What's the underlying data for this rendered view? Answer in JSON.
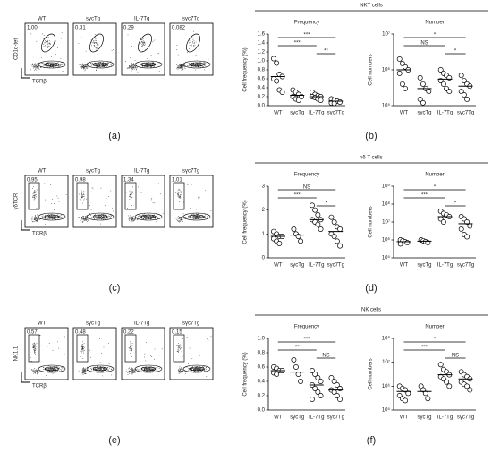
{
  "figure": {
    "panel_labels": [
      "(a)",
      "(b)",
      "(c)",
      "(d)",
      "(e)",
      "(f)"
    ]
  },
  "sections": [
    {
      "title": "NKT cells"
    },
    {
      "title": "γδ T cells"
    },
    {
      "title": "NK cells"
    }
  ],
  "flow_rows": [
    {
      "y_label": "CD1d-tet",
      "x_label": "TCRβ",
      "panels": [
        {
          "name": "WT",
          "pct": "1.00"
        },
        {
          "name": "sγcTg",
          "pct": "0.31"
        },
        {
          "name": "IL-7Tg",
          "pct": "0.29"
        },
        {
          "name": "sγc7Tg",
          "pct": "0.082"
        }
      ]
    },
    {
      "y_label": "γδTCR",
      "x_label": "TCRβ",
      "panels": [
        {
          "name": "WT",
          "pct": "0.95"
        },
        {
          "name": "sγcTg",
          "pct": "0.98"
        },
        {
          "name": "IL-7Tg",
          "pct": "1.34"
        },
        {
          "name": "sγc7Tg",
          "pct": "1.01"
        }
      ]
    },
    {
      "y_label": "NK1.1",
      "x_label": "TCRβ",
      "panels": [
        {
          "name": "WT",
          "pct": "0.57"
        },
        {
          "name": "sγcTg",
          "pct": "0.48"
        },
        {
          "name": "IL-7Tg",
          "pct": "0.22"
        },
        {
          "name": "sγc7Tg",
          "pct": "0.15"
        }
      ]
    }
  ],
  "chart_data": [
    {
      "type": "dot",
      "title": "Frequency",
      "ylabel": "Cell frequency (%)",
      "log": false,
      "color": "#000000",
      "categories": [
        "WT",
        "sγcTg",
        "IL-7Tg",
        "sγc7Tg"
      ],
      "values": [
        [
          1.05,
          0.95,
          0.7,
          0.65,
          0.6,
          0.55,
          0.35,
          0.3
        ],
        [
          0.35,
          0.3,
          0.25,
          0.2,
          0.2,
          0.15,
          0.12
        ],
        [
          0.3,
          0.25,
          0.22,
          0.2,
          0.2,
          0.18,
          0.15,
          0.12
        ],
        [
          0.15,
          0.12,
          0.1,
          0.08,
          0.06,
          0.05
        ]
      ],
      "means": [
        0.65,
        0.23,
        0.2,
        0.1
      ],
      "ylim": [
        0,
        1.6
      ],
      "yticks": [
        {
          "value": 0,
          "label": "0.0"
        },
        0.2,
        0.4,
        0.6,
        0.8,
        {
          "value": 1,
          "label": "1.0"
        },
        1.2,
        1.4,
        1.6
      ],
      "comparisons": [
        {
          "from": "WT",
          "to": "sγc7Tg",
          "label": "***"
        },
        {
          "from": "WT",
          "to": "IL-7Tg",
          "label": "***"
        },
        {
          "from": "IL-7Tg",
          "to": "sγc7Tg",
          "label": "**"
        }
      ]
    },
    {
      "type": "dot",
      "title": "Number",
      "ylabel": "Cell numbers",
      "log": true,
      "color": "#000000",
      "categories": [
        "WT",
        "sγcTg",
        "IL-7Tg",
        "sγc7Tg"
      ],
      "values": [
        [
          2000000,
          1500000,
          1200000,
          1000000,
          800000,
          400000,
          300000
        ],
        [
          600000,
          400000,
          300000,
          250000,
          150000,
          120000
        ],
        [
          1000000,
          800000,
          700000,
          600000,
          500000,
          400000,
          300000,
          250000
        ],
        [
          700000,
          500000,
          400000,
          350000,
          250000,
          200000,
          150000
        ]
      ],
      "means": [
        1000000,
        300000,
        550000,
        350000
      ],
      "ylim": [
        100000,
        10000000
      ],
      "yticks": [
        {
          "value": 100000,
          "label": "10⁵"
        },
        {
          "value": 1000000,
          "label": "10⁶"
        },
        {
          "value": 10000000,
          "label": "10⁷"
        }
      ],
      "comparisons": [
        {
          "from": "WT",
          "to": "sγc7Tg",
          "label": "*"
        },
        {
          "from": "WT",
          "to": "IL-7Tg",
          "label": "NS"
        },
        {
          "from": "IL-7Tg",
          "to": "sγc7Tg",
          "label": "*"
        }
      ]
    },
    {
      "type": "dot",
      "title": "Frequency",
      "ylabel": "Cell frequency (%)",
      "log": false,
      "color": "#000000",
      "categories": [
        "WT",
        "sγcTg",
        "IL-7Tg",
        "sγc7Tg"
      ],
      "values": [
        [
          1.1,
          1.0,
          0.9,
          0.9,
          0.8,
          0.7,
          0.6
        ],
        [
          1.2,
          1.0,
          0.9,
          0.7
        ],
        [
          2.2,
          2.0,
          1.8,
          1.6,
          1.6,
          1.5,
          1.4,
          1.2
        ],
        [
          1.7,
          1.5,
          1.3,
          1.2,
          1.0,
          0.9,
          0.7,
          0.5
        ]
      ],
      "means": [
        0.9,
        0.95,
        1.6,
        1.1
      ],
      "ylim": [
        0,
        3
      ],
      "yticks": [
        0,
        1,
        2,
        3
      ],
      "comparisons": [
        {
          "from": "WT",
          "to": "sγc7Tg",
          "label": "NS"
        },
        {
          "from": "WT",
          "to": "IL-7Tg",
          "label": "***"
        },
        {
          "from": "IL-7Tg",
          "to": "sγc7Tg",
          "label": "*"
        }
      ]
    },
    {
      "type": "dot",
      "title": "Number",
      "ylabel": "Cell numbers",
      "log": true,
      "color": "#000000",
      "categories": [
        "WT",
        "sγcTg",
        "IL-7Tg",
        "sγc7Tg"
      ],
      "values": [
        [
          1000000,
          900000,
          800000,
          700000,
          600000
        ],
        [
          1000000,
          900000,
          800000,
          700000
        ],
        [
          40000000,
          30000000,
          25000000,
          20000000,
          15000000,
          10000000
        ],
        [
          20000000,
          15000000,
          10000000,
          6000000,
          4000000,
          2000000,
          1500000
        ]
      ],
      "means": [
        800000,
        850000,
        20000000,
        8000000
      ],
      "ylim": [
        100000,
        1000000000
      ],
      "yticks": [
        {
          "value": 100000,
          "label": "10⁵"
        },
        {
          "value": 1000000,
          "label": "10⁶"
        },
        {
          "value": 10000000,
          "label": "10⁷"
        },
        {
          "value": 100000000,
          "label": "10⁸"
        },
        {
          "value": 1000000000,
          "label": "10⁹"
        }
      ],
      "comparisons": [
        {
          "from": "WT",
          "to": "sγc7Tg",
          "label": "*"
        },
        {
          "from": "WT",
          "to": "IL-7Tg",
          "label": "***"
        },
        {
          "from": "IL-7Tg",
          "to": "sγc7Tg",
          "label": "*"
        }
      ]
    },
    {
      "type": "dot",
      "title": "Frequency",
      "ylabel": "Cell frequency (%)",
      "log": false,
      "color": "#000000",
      "categories": [
        "WT",
        "sγcTg",
        "IL-7Tg",
        "sγc7Tg"
      ],
      "values": [
        [
          0.6,
          0.58,
          0.55,
          0.55,
          0.52,
          0.5
        ],
        [
          0.7,
          0.6,
          0.5,
          0.4
        ],
        [
          0.55,
          0.5,
          0.45,
          0.4,
          0.35,
          0.3,
          0.25,
          0.2,
          0.15
        ],
        [
          0.45,
          0.4,
          0.35,
          0.3,
          0.28,
          0.25,
          0.2,
          0.15
        ]
      ],
      "means": [
        0.55,
        0.53,
        0.35,
        0.28
      ],
      "ylim": [
        0,
        1
      ],
      "yticks": [
        {
          "value": 0,
          "label": "0.0"
        },
        0.2,
        0.4,
        0.6,
        0.8,
        {
          "value": 1,
          "label": "1.0"
        }
      ],
      "comparisons": [
        {
          "from": "WT",
          "to": "sγc7Tg",
          "label": "***"
        },
        {
          "from": "WT",
          "to": "IL-7Tg",
          "label": "**"
        },
        {
          "from": "IL-7Tg",
          "to": "sγc7Tg",
          "label": "NS"
        }
      ]
    },
    {
      "type": "dot",
      "title": "Number",
      "ylabel": "Cell numbers",
      "log": true,
      "color": "#000000",
      "categories": [
        "WT",
        "sγcTg",
        "IL-7Tg",
        "sγc7Tg"
      ],
      "values": [
        [
          1000000,
          800000,
          700000,
          500000,
          400000,
          300000,
          250000
        ],
        [
          1000000,
          700000,
          500000,
          300000
        ],
        [
          8000000,
          5000000,
          4000000,
          3000000,
          2500000,
          2000000,
          1500000,
          1000000
        ],
        [
          4000000,
          3000000,
          2500000,
          2000000,
          1500000,
          1200000,
          1000000,
          700000
        ]
      ],
      "means": [
        600000,
        600000,
        3000000,
        2000000
      ],
      "ylim": [
        100000,
        100000000
      ],
      "yticks": [
        {
          "value": 100000,
          "label": "10⁵"
        },
        {
          "value": 1000000,
          "label": "10⁶"
        },
        {
          "value": 10000000,
          "label": "10⁷"
        },
        {
          "value": 100000000,
          "label": "10⁸"
        }
      ],
      "comparisons": [
        {
          "from": "WT",
          "to": "sγc7Tg",
          "label": "*"
        },
        {
          "from": "WT",
          "to": "IL-7Tg",
          "label": "***"
        },
        {
          "from": "IL-7Tg",
          "to": "sγc7Tg",
          "label": "NS"
        }
      ]
    }
  ]
}
